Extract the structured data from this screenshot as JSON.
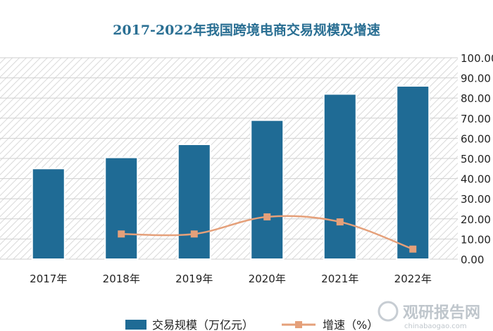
{
  "chart_data": {
    "type": "bar",
    "title": "2017-2022年我国跨境电商交易规模及增速",
    "categories": [
      "2017年",
      "2018年",
      "2019年",
      "2020年",
      "2021年",
      "2022年"
    ],
    "series": [
      {
        "name": "交易规模（万亿元）",
        "kind": "bar",
        "values": [
          45,
          50.5,
          57,
          69,
          82,
          86
        ],
        "color": "#1f6b95"
      },
      {
        "name": "增速（%）",
        "kind": "line",
        "values": [
          null,
          12.5,
          12.5,
          21,
          18.5,
          5
        ],
        "color": "#e5a07a"
      }
    ],
    "y_right_ticks": [
      "0.00",
      "10.00",
      "20.00",
      "30.00",
      "40.00",
      "50.00",
      "60.00",
      "70.00",
      "80.00",
      "90.00",
      "100.00"
    ],
    "ylim": [
      0,
      100
    ],
    "grid": true,
    "legend_position": "bottom"
  },
  "watermark": {
    "text": "观研报告网",
    "subtext": "chinabaogao.com"
  }
}
